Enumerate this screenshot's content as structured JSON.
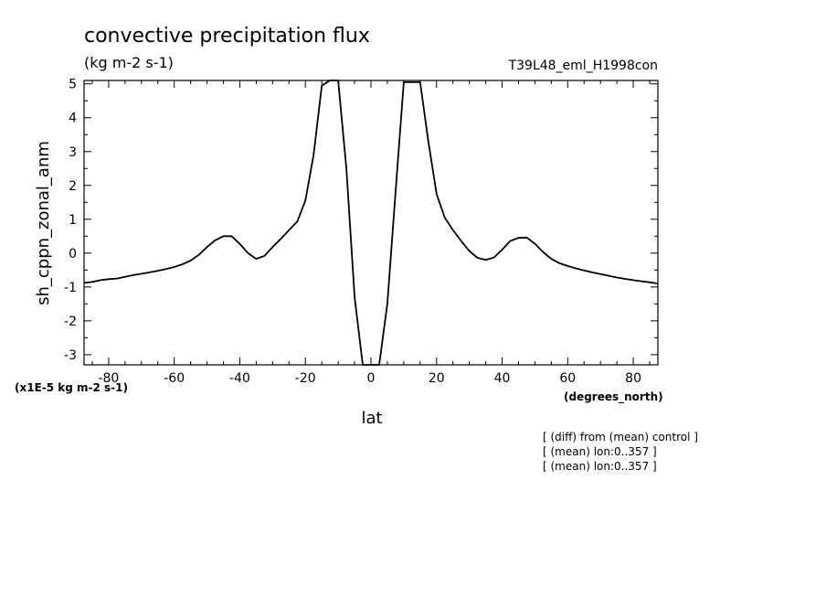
{
  "chart_data": {
    "type": "line",
    "title": "convective precipitation flux",
    "units_label": "(kg m-2 s-1)",
    "run_label": "T39L48_eml_H1998con",
    "xlabel": "lat",
    "xunits": "(degrees_north)",
    "ylabel": "sh_cppn_zonal_anm",
    "yscale_label": "(x1E-5 kg m-2 s-1)",
    "xlim": [
      -87.5,
      87.5
    ],
    "ylim": [
      -3.3,
      5.1
    ],
    "x_ticks": [
      "-80",
      "-60",
      "-40",
      "-20",
      "0",
      "20",
      "40",
      "60",
      "80"
    ],
    "y_ticks": [
      "-3",
      "-2",
      "-1",
      "0",
      "1",
      "2",
      "3",
      "4",
      "5"
    ],
    "notes": [
      "[ (diff) from (mean) control ]",
      "[ (mean) lon:0..357 ]",
      "[ (mean) lon:0..357 ]"
    ],
    "x": [
      -87.5,
      -85,
      -82.5,
      -80,
      -77.5,
      -75,
      -72.5,
      -70,
      -67.5,
      -65,
      -62.5,
      -60,
      -57.5,
      -55,
      -52.5,
      -50,
      -47.5,
      -45,
      -42.5,
      -40,
      -37.5,
      -35,
      -32.5,
      -30,
      -27.5,
      -25,
      -22.5,
      -20,
      -17.5,
      -15,
      -12.5,
      -10,
      -7.5,
      -5,
      -2.5,
      0,
      2.5,
      5,
      7.5,
      10,
      12.5,
      15,
      17.5,
      20,
      22.5,
      25,
      27.5,
      30,
      32.5,
      35,
      37.5,
      40,
      42.5,
      45,
      47.5,
      50,
      52.5,
      55,
      57.5,
      60,
      62.5,
      65,
      67.5,
      70,
      72.5,
      75,
      77.5,
      80,
      82.5,
      85,
      87.5
    ],
    "y": [
      -0.88,
      -0.85,
      -0.8,
      -0.77,
      -0.75,
      -0.7,
      -0.65,
      -0.61,
      -0.57,
      -0.52,
      -0.47,
      -0.41,
      -0.33,
      -0.22,
      -0.05,
      0.18,
      0.38,
      0.5,
      0.5,
      0.27,
      0.0,
      -0.17,
      -0.08,
      0.18,
      0.42,
      0.68,
      0.93,
      1.55,
      2.9,
      4.95,
      5.1,
      5.1,
      2.5,
      -1.3,
      -3.3,
      -3.3,
      -3.3,
      -1.5,
      1.8,
      5.05,
      5.05,
      5.05,
      3.3,
      1.75,
      1.05,
      0.68,
      0.36,
      0.06,
      -0.14,
      -0.2,
      -0.13,
      0.1,
      0.36,
      0.45,
      0.46,
      0.28,
      0.03,
      -0.17,
      -0.3,
      -0.38,
      -0.45,
      -0.51,
      -0.57,
      -0.62,
      -0.67,
      -0.72,
      -0.76,
      -0.8,
      -0.83,
      -0.86,
      -0.9
    ]
  }
}
